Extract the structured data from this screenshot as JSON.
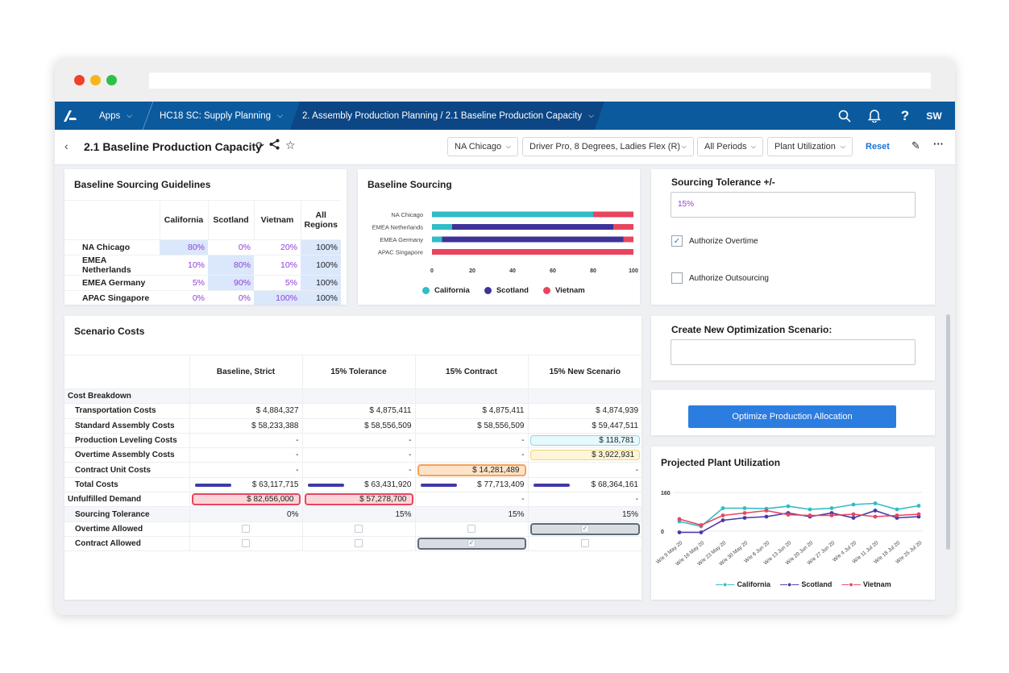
{
  "topnav": {
    "logo": "A",
    "apps_label": "Apps",
    "model_label": "HC18 SC: Supply Planning",
    "breadcrumb_label": "2. Assembly Production Planning / 2.1 Baseline Production Capacity",
    "user_initials": "SW"
  },
  "pagebar": {
    "title": "2.1 Baseline Production Capacity",
    "filters": [
      "NA Chicago",
      "Driver Pro, 8 Degrees, Ladies Flex (R)",
      "All Periods",
      "Plant Utilization"
    ],
    "reset_label": "Reset"
  },
  "guidelines": {
    "title": "Baseline Sourcing Guidelines",
    "headers": [
      "California",
      "Scotland",
      "Vietnam",
      "All Regions"
    ],
    "rows": [
      {
        "name": "NA Chicago",
        "values": [
          "80%",
          "0%",
          "20%",
          "100%"
        ]
      },
      {
        "name": "EMEA Netherlands",
        "values": [
          "10%",
          "80%",
          "10%",
          "100%"
        ]
      },
      {
        "name": "EMEA Germany",
        "values": [
          "5%",
          "90%",
          "5%",
          "100%"
        ]
      },
      {
        "name": "APAC Singapore",
        "values": [
          "0%",
          "0%",
          "100%",
          "100%"
        ]
      }
    ]
  },
  "baseline_sourcing": {
    "title": "Baseline Sourcing",
    "chart_data": {
      "type": "bar",
      "orientation": "horizontal",
      "stacked": true,
      "categories": [
        "NA Chicago",
        "EMEA Netherlands",
        "EMEA Germany",
        "APAC Singapore"
      ],
      "series": [
        {
          "name": "California",
          "color": "#2fbdc6",
          "values": [
            80,
            10,
            5,
            0
          ]
        },
        {
          "name": "Scotland",
          "color": "#3d3399",
          "values": [
            0,
            80,
            90,
            0
          ]
        },
        {
          "name": "Vietnam",
          "color": "#e8455e",
          "values": [
            20,
            10,
            5,
            100
          ]
        }
      ],
      "x_ticks": [
        "0",
        "20",
        "40",
        "60",
        "80",
        "100"
      ],
      "xlim": [
        0,
        100
      ],
      "legend": "bottom"
    }
  },
  "tolerance": {
    "title": "Sourcing Tolerance +/-",
    "value": "15%",
    "authorize_overtime": "Authorize Overtime",
    "authorize_outsourcing": "Authorize Outsourcing"
  },
  "new_scenario": {
    "title": "Create New Optimization Scenario:",
    "value": ""
  },
  "optimize_button": "Optimize Production Allocation",
  "scenario_costs": {
    "title": "Scenario Costs",
    "columns": [
      "Baseline, Strict",
      "15% Tolerance",
      "15% Contract",
      "15% New Scenario"
    ],
    "cost_breakdown": "Cost Breakdown",
    "rows": [
      {
        "name": "Transportation Costs",
        "values": [
          "$ 4,884,327",
          "$ 4,875,411",
          "$ 4,875,411",
          "$ 4,874,939"
        ]
      },
      {
        "name": "Standard Assembly Costs",
        "values": [
          "$ 58,233,388",
          "$ 58,556,509",
          "$ 58,556,509",
          "$ 59,447,511"
        ]
      },
      {
        "name": "Production Leveling Costs",
        "values": [
          "-",
          "-",
          "-",
          "$ 118,781"
        ]
      },
      {
        "name": "Overtime Assembly Costs",
        "values": [
          "-",
          "-",
          "-",
          "$ 3,922,931"
        ]
      },
      {
        "name": "Contract Unit Costs",
        "values": [
          "-",
          "-",
          "$ 14,281,489",
          "-"
        ]
      },
      {
        "name": "Total Costs",
        "values": [
          "$ 63,117,715",
          "$ 63,431,920",
          "$ 77,713,409",
          "$ 68,364,161"
        ]
      }
    ],
    "unfulfilled": {
      "name": "Unfulfilled Demand",
      "values": [
        "$ 82,656,000",
        "$ 57,278,700",
        "-",
        "-"
      ]
    },
    "tolerance_row": {
      "name": "Sourcing Tolerance",
      "values": [
        "0%",
        "15%",
        "15%",
        "15%"
      ]
    },
    "overtime_row": {
      "name": "Overtime Allowed",
      "values": [
        false,
        false,
        false,
        true
      ]
    },
    "contract_row": {
      "name": "Contract Allowed",
      "values": [
        false,
        false,
        true,
        false
      ]
    }
  },
  "utilization": {
    "title": "Projected Plant Utilization",
    "chart_data": {
      "type": "line",
      "x": [
        "W/e 9 May 20",
        "W/e 16 May 20",
        "W/e 23 May 20",
        "W/e 30 May 20",
        "W/e 6 Jun 20",
        "W/e 13 Jun 20",
        "W/e 20 Jun 20",
        "W/e 27 Jun 20",
        "W/e 4 Jul 20",
        "W/e 11 Jul 20",
        "W/e 18 Jul 20",
        "W/e 25 Jul 20"
      ],
      "series": [
        {
          "name": "California",
          "color": "#2fbdc6",
          "values": [
            40,
            20,
            95,
            95,
            93,
            103,
            90,
            95,
            110,
            115,
            90,
            105
          ]
        },
        {
          "name": "Scotland",
          "color": "#4b37a8",
          "values": [
            -5,
            -5,
            45,
            55,
            60,
            75,
            60,
            75,
            55,
            85,
            55,
            60
          ]
        },
        {
          "name": "Vietnam",
          "color": "#e8455e",
          "values": [
            50,
            25,
            65,
            75,
            85,
            68,
            65,
            65,
            70,
            60,
            65,
            70
          ]
        }
      ],
      "y_ticks": [
        "0",
        "160"
      ],
      "ylim": [
        -20,
        170
      ],
      "legend": "bottom"
    }
  }
}
